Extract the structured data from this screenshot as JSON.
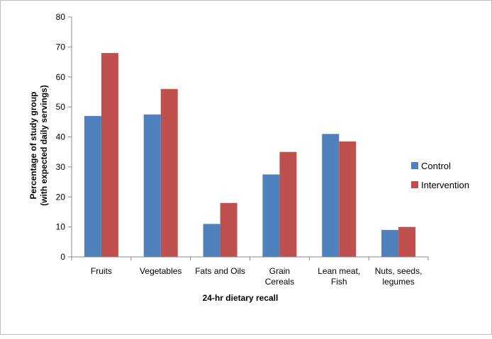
{
  "chart_data": {
    "type": "bar",
    "title": "",
    "xlabel": "24-hr dietary recall",
    "ylabel": [
      "Percentage of study group",
      "(with expected daily servings)"
    ],
    "categories": [
      [
        "Fruits"
      ],
      [
        "Vegetables"
      ],
      [
        "Fats and Oils"
      ],
      [
        "Grain",
        "Cereals"
      ],
      [
        "Lean meat,",
        "Fish"
      ],
      [
        "Nuts, seeds,",
        "legumes"
      ]
    ],
    "series": [
      {
        "name": "Control",
        "color": "#4f81bd",
        "values": [
          47,
          47.5,
          11,
          27.5,
          41,
          9
        ]
      },
      {
        "name": "Intervention",
        "color": "#c0504d",
        "values": [
          68,
          56,
          18,
          35,
          38.5,
          10
        ]
      }
    ],
    "ylim": [
      0,
      80
    ],
    "yticks": [
      "0",
      "10",
      "20",
      "30",
      "40",
      "50",
      "60",
      "70",
      "80"
    ],
    "grid": false,
    "legend_position": "right"
  }
}
